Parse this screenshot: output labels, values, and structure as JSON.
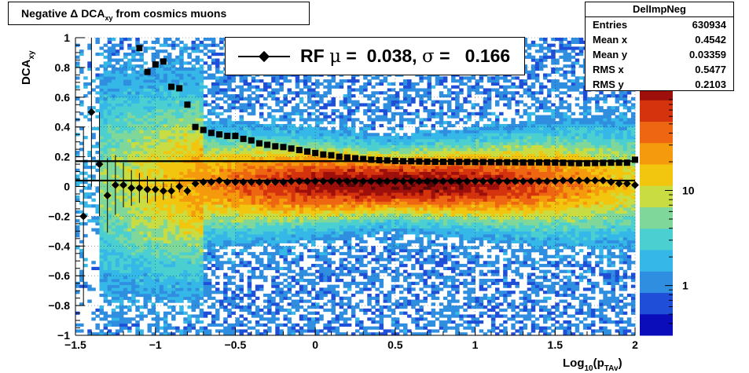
{
  "title": "Negative Δ DCA",
  "title_sub": "xy",
  "title_tail": " from cosmics muons",
  "stats": {
    "name": "DelImpNeg",
    "rows": [
      {
        "label": "Entries",
        "value": "630934"
      },
      {
        "label": "Mean x",
        "value": "0.4542"
      },
      {
        "label": "Mean y",
        "value": "0.03359"
      },
      {
        "label": "RMS x",
        "value": "0.5477"
      },
      {
        "label": "RMS y",
        "value": "0.2103"
      }
    ]
  },
  "legend": {
    "marker": "diamond",
    "text_parts": [
      "RF",
      "μ",
      "=",
      "0.038,",
      "σ",
      "=",
      "0.166"
    ]
  },
  "colors": {
    "palette": [
      "#0b0dbb",
      "#1f4fd8",
      "#2f8ee0",
      "#35b8e8",
      "#4bcfd0",
      "#7fd79a",
      "#c9dd43",
      "#f2c60e",
      "#f59a0c",
      "#ee6611",
      "#d5320e",
      "#9e0f0b",
      "#5a0508"
    ]
  },
  "chart_data": {
    "type": "heatmap",
    "xlabel": "Log",
    "xlabel_sub1": "10",
    "xlabel_mid": "(p",
    "xlabel_sub2": "TAv",
    "xlabel_end": ")",
    "ylabel": "DCA",
    "ylabel_sub": "xy",
    "xlim": [
      -1.5,
      2.0
    ],
    "ylim": [
      -1.0,
      1.0
    ],
    "x_ticks": [
      -1.5,
      -1,
      -0.5,
      0,
      0.5,
      1,
      1.5,
      2
    ],
    "x_tick_labels": [
      "−1.5",
      "−1",
      "−0.5",
      "0",
      "0.5",
      "1",
      "1.5",
      "2"
    ],
    "y_ticks": [
      -1,
      -0.8,
      -0.6,
      -0.4,
      -0.2,
      0,
      0.2,
      0.4,
      0.6,
      0.8,
      1
    ],
    "y_tick_labels": [
      "−1",
      "−0.8",
      "−0.6",
      "−0.4",
      "−0.2",
      "0",
      "0.2",
      "0.4",
      "0.6",
      "0.8",
      "1"
    ],
    "grid": true,
    "z_scale": "log",
    "z_tick_labels": [
      "1",
      "10"
    ],
    "z_ticks": [
      1,
      10
    ],
    "z_range": [
      0.3,
      150
    ],
    "heat_center": {
      "x": 0.5,
      "y": 0.02
    },
    "fit_lines": [
      0.17,
      0.04
    ],
    "mean_points": {
      "x": [
        -1.45,
        -1.4,
        -1.35,
        -1.3,
        -1.25,
        -1.2,
        -1.15,
        -1.1,
        -1.05,
        -1.0,
        -0.95,
        -0.9,
        -0.85,
        -0.8,
        -0.75,
        -0.7,
        -0.65,
        -0.6,
        -0.55,
        -0.5,
        -0.45,
        -0.4,
        -0.35,
        -0.3,
        -0.25,
        -0.2,
        -0.15,
        -0.1,
        -0.05,
        0.0,
        0.05,
        0.1,
        0.15,
        0.2,
        0.25,
        0.3,
        0.35,
        0.4,
        0.45,
        0.5,
        0.55,
        0.6,
        0.65,
        0.7,
        0.75,
        0.8,
        0.85,
        0.9,
        0.95,
        1.0,
        1.05,
        1.1,
        1.15,
        1.2,
        1.25,
        1.3,
        1.35,
        1.4,
        1.45,
        1.5,
        1.55,
        1.6,
        1.65,
        1.7,
        1.75,
        1.8,
        1.85,
        1.9,
        1.95,
        2.0
      ],
      "y": [
        -0.2,
        0.5,
        0.15,
        -0.06,
        0.01,
        0.01,
        -0.01,
        -0.01,
        -0.02,
        -0.02,
        -0.03,
        -0.03,
        0.0,
        -0.03,
        0.02,
        0.03,
        0.03,
        0.04,
        0.03,
        0.03,
        0.03,
        0.03,
        0.03,
        0.03,
        0.03,
        0.03,
        0.035,
        0.035,
        0.035,
        0.035,
        0.035,
        0.035,
        0.035,
        0.035,
        0.035,
        0.035,
        0.035,
        0.035,
        0.035,
        0.035,
        0.035,
        0.035,
        0.035,
        0.035,
        0.035,
        0.035,
        0.035,
        0.035,
        0.035,
        0.035,
        0.035,
        0.035,
        0.035,
        0.035,
        0.035,
        0.035,
        0.035,
        0.035,
        0.035,
        0.035,
        0.04,
        0.04,
        0.04,
        0.04,
        0.04,
        0.04,
        0.03,
        0.02,
        0.02,
        0.01
      ],
      "yerr": [
        0.6,
        0.5,
        0.35,
        0.25,
        0.2,
        0.15,
        0.12,
        0.1,
        0.09,
        0.08,
        0.06,
        0.05,
        0.04,
        0.03,
        0.02,
        0.01,
        0.01,
        0.01,
        0.01,
        0.01,
        0.01,
        0.01,
        0.01,
        0.01,
        0.01,
        0.01,
        0.01,
        0.01,
        0.01,
        0.01,
        0.01,
        0.01,
        0.01,
        0.01,
        0.01,
        0.01,
        0.01,
        0.01,
        0.01,
        0.01,
        0.01,
        0.01,
        0.01,
        0.01,
        0.01,
        0.01,
        0.01,
        0.01,
        0.01,
        0.01,
        0.01,
        0.01,
        0.01,
        0.01,
        0.01,
        0.01,
        0.01,
        0.01,
        0.01,
        0.01,
        0.01,
        0.01,
        0.01,
        0.01,
        0.01,
        0.01,
        0.01,
        0.01,
        0.01,
        0.01
      ]
    },
    "sigma_points": {
      "x": [
        -1.1,
        -1.05,
        -1.0,
        -0.95,
        -0.9,
        -0.85,
        -0.8,
        -0.75,
        -0.7,
        -0.65,
        -0.6,
        -0.55,
        -0.5,
        -0.45,
        -0.4,
        -0.35,
        -0.3,
        -0.25,
        -0.2,
        -0.15,
        -0.1,
        -0.05,
        0.0,
        0.05,
        0.1,
        0.15,
        0.2,
        0.25,
        0.3,
        0.35,
        0.4,
        0.45,
        0.5,
        0.55,
        0.6,
        0.65,
        0.7,
        0.75,
        0.8,
        0.85,
        0.9,
        0.95,
        1.0,
        1.05,
        1.1,
        1.15,
        1.2,
        1.25,
        1.3,
        1.35,
        1.4,
        1.45,
        1.5,
        1.55,
        1.6,
        1.65,
        1.7,
        1.75,
        1.8,
        1.85,
        1.9,
        1.95,
        2.0
      ],
      "y": [
        0.93,
        0.77,
        0.82,
        0.84,
        0.67,
        0.66,
        0.55,
        0.4,
        0.38,
        0.36,
        0.35,
        0.34,
        0.34,
        0.32,
        0.31,
        0.29,
        0.28,
        0.27,
        0.265,
        0.255,
        0.245,
        0.235,
        0.225,
        0.215,
        0.21,
        0.2,
        0.195,
        0.19,
        0.185,
        0.18,
        0.177,
        0.175,
        0.172,
        0.17,
        0.17,
        0.168,
        0.167,
        0.166,
        0.166,
        0.165,
        0.165,
        0.165,
        0.164,
        0.164,
        0.164,
        0.163,
        0.163,
        0.163,
        0.162,
        0.162,
        0.162,
        0.162,
        0.161,
        0.16,
        0.158,
        0.157,
        0.157,
        0.158,
        0.159,
        0.16,
        0.16,
        0.16,
        0.18
      ]
    }
  }
}
